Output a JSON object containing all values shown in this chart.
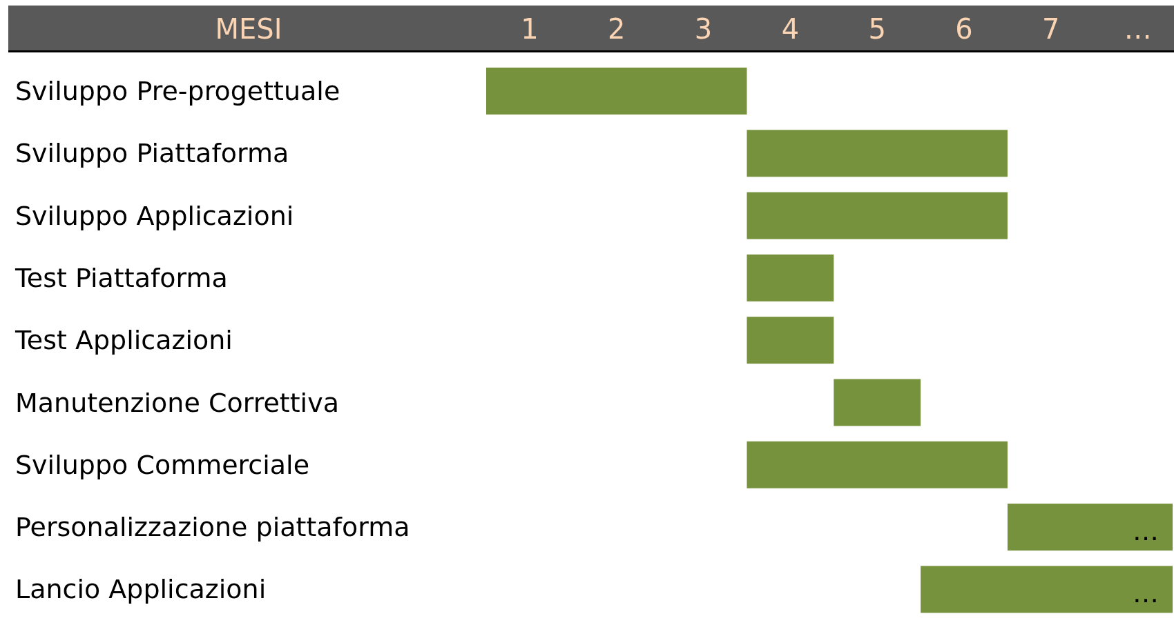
{
  "chart_data": {
    "type": "bar",
    "orientation": "horizontal",
    "xlabel": "MESI",
    "categories": [
      "Sviluppo Pre-progettuale",
      "Sviluppo Piattaforma",
      "Sviluppo Applicazioni",
      "Test Piattaforma",
      "Test Applicazioni",
      "Manutenzione Correttiva",
      "Sviluppo Commerciale",
      "Personalizzazione piattaforma",
      "Lancio Applicazioni"
    ],
    "base": [
      0,
      3,
      3,
      3,
      3,
      4,
      3,
      6,
      5
    ],
    "values": [
      3,
      3,
      3,
      1,
      1,
      1,
      3,
      1.9,
      2.9
    ],
    "value_labels": [
      null,
      null,
      null,
      null,
      null,
      null,
      null,
      "…",
      "…"
    ],
    "color": "#76923c",
    "xlim": [
      0,
      7.9
    ],
    "xticks": [
      {
        "value": 0.5,
        "label": "1"
      },
      {
        "value": 1.5,
        "label": "2"
      },
      {
        "value": 2.5,
        "label": "3"
      },
      {
        "value": 3.5,
        "label": "4"
      },
      {
        "value": 4.5,
        "label": "5"
      },
      {
        "value": 5.5,
        "label": "6"
      },
      {
        "value": 6.5,
        "label": "7"
      },
      {
        "value": 7.5,
        "label": "…"
      }
    ]
  }
}
